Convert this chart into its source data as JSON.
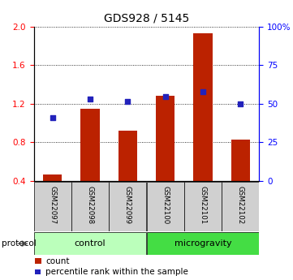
{
  "title": "GDS928 / 5145",
  "samples": [
    "GSM22097",
    "GSM22098",
    "GSM22099",
    "GSM22100",
    "GSM22101",
    "GSM22102"
  ],
  "bar_values": [
    0.46,
    1.15,
    0.92,
    1.28,
    1.93,
    0.83
  ],
  "dot_values": [
    1.05,
    1.25,
    1.22,
    1.27,
    1.32,
    1.2
  ],
  "bar_color": "#bb2200",
  "dot_color": "#2222bb",
  "ylim_left": [
    0.4,
    2.0
  ],
  "ylim_right": [
    0,
    100
  ],
  "yticks_left": [
    0.4,
    0.8,
    1.2,
    1.6,
    2.0
  ],
  "yticks_right": [
    0,
    25,
    50,
    75,
    100
  ],
  "ytick_labels_right": [
    "0",
    "25",
    "50",
    "75",
    "100%"
  ],
  "groups": [
    {
      "label": "control",
      "indices": [
        0,
        1,
        2
      ],
      "color": "#bbffbb"
    },
    {
      "label": "microgravity",
      "indices": [
        3,
        4,
        5
      ],
      "color": "#44dd44"
    }
  ],
  "protocol_label": "protocol",
  "legend_bar": "count",
  "legend_dot": "percentile rank within the sample",
  "bar_width": 0.5,
  "sample_bg_color": "#d0d0d0",
  "title_fontsize": 10
}
